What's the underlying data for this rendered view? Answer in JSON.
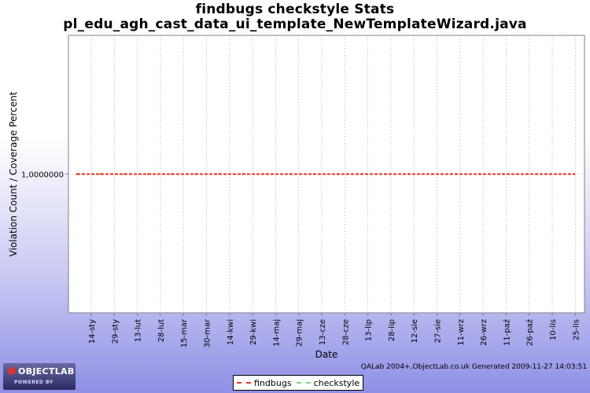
{
  "chart_data": {
    "type": "line",
    "title": "findbugs checkstyle  Stats",
    "subtitle": "pl_edu_agh_cast_data_ui_template_NewTemplateWizard.java",
    "xlabel": "Date",
    "ylabel": "Violation Count / Coverage Percent",
    "x_tick_labels": [
      "14-sty",
      "29-sty",
      "13-lut",
      "28-lut",
      "15-mar",
      "30-mar",
      "14-kwi",
      "29-kwi",
      "14-maj",
      "29-maj",
      "13-cze",
      "28-cze",
      "13-lip",
      "28-lip",
      "12-sie",
      "27-sie",
      "11-wrz",
      "26-wrz",
      "11-paź",
      "26-paź",
      "10-lis",
      "25-lis"
    ],
    "y_tick_labels": [
      "1,0000000"
    ],
    "y_ticks": [
      1.0
    ],
    "ylim": [
      0,
      2
    ],
    "grid": true,
    "legend_position": "bottom",
    "series": [
      {
        "name": "findbugs",
        "color": "#e8301c",
        "style": "dashed",
        "values": [
          1,
          1,
          1,
          1,
          1,
          1,
          1,
          1,
          1,
          1,
          1,
          1,
          1,
          1,
          1,
          1,
          1,
          1,
          1,
          1,
          1,
          1
        ]
      },
      {
        "name": "checkstyle",
        "color": "#7ad87a",
        "style": "dashed",
        "values": [
          1,
          1,
          1,
          1,
          1,
          1,
          1,
          1,
          1,
          1,
          1,
          1,
          1,
          1,
          1,
          1,
          1,
          1,
          1,
          1,
          1,
          1
        ]
      }
    ]
  },
  "footer": {
    "note": "QALab 2004+,ObjectLab.co.uk Generated 2009-11-27 14:03:51"
  },
  "logo": {
    "name": "OBJECTLAB",
    "tagline": "POWERED BY"
  }
}
